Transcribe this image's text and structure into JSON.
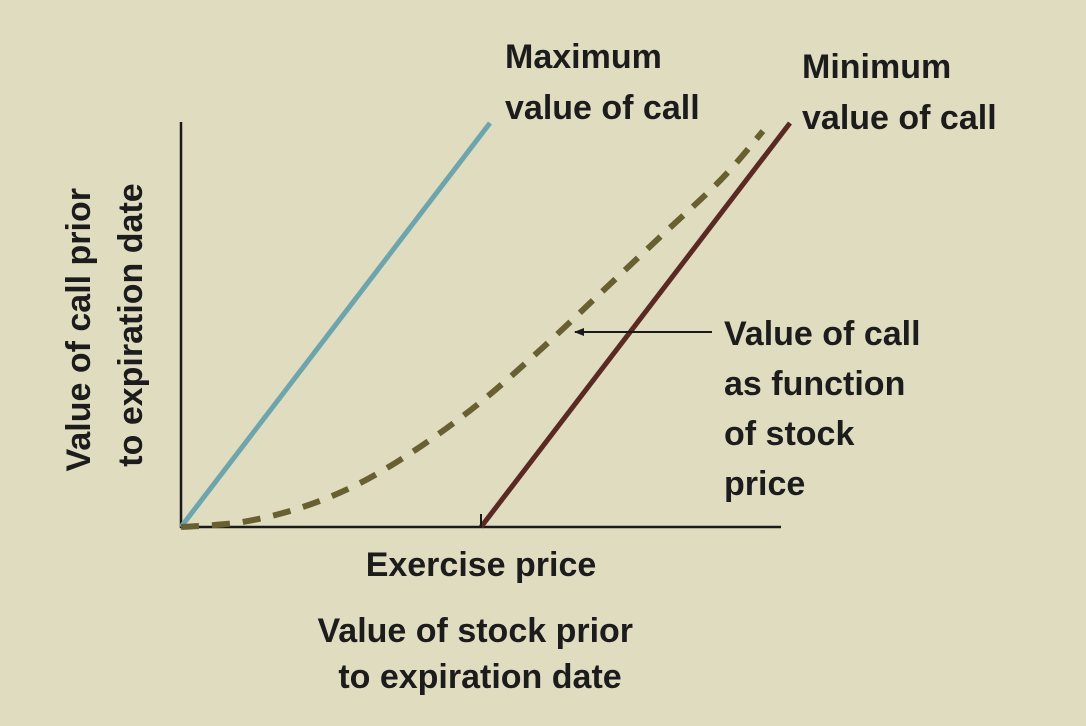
{
  "colors": {
    "background": "#e0dcc0",
    "axis": "#1a1a1a",
    "max_line": "#6ea5ad",
    "min_line": "#5a2a22",
    "call_curve": "#686030",
    "text": "#1c1c1c"
  },
  "chart_data": {
    "type": "line",
    "xlabel": [
      "Value of stock prior",
      "to expiration date"
    ],
    "ylabel": [
      "Value of call prior",
      "to expiration date"
    ],
    "x_tick_label": "Exercise price",
    "exercise_price": 0.5,
    "xlim": [
      0,
      1
    ],
    "ylim": [
      0,
      1
    ],
    "grid": false,
    "series": [
      {
        "key": "max",
        "style": "solid",
        "x": [
          0,
          0.515
        ],
        "y": [
          0,
          1.0
        ],
        "label": [
          "Maximum",
          "value of call"
        ]
      },
      {
        "key": "min",
        "style": "solid",
        "x": [
          0.5,
          1.015
        ],
        "y": [
          0,
          1.0
        ],
        "label": [
          "Minimum",
          "value of call"
        ]
      },
      {
        "key": "call",
        "style": "dashed",
        "x": [
          0,
          0.1,
          0.2,
          0.3,
          0.4,
          0.5,
          0.6,
          0.7,
          0.8,
          0.9,
          0.97
        ],
        "y": [
          0,
          0.012,
          0.048,
          0.11,
          0.2,
          0.31,
          0.44,
          0.58,
          0.72,
          0.86,
          0.98
        ],
        "label": [
          "Value of call",
          "as function",
          "of stock",
          "price"
        ]
      }
    ]
  }
}
